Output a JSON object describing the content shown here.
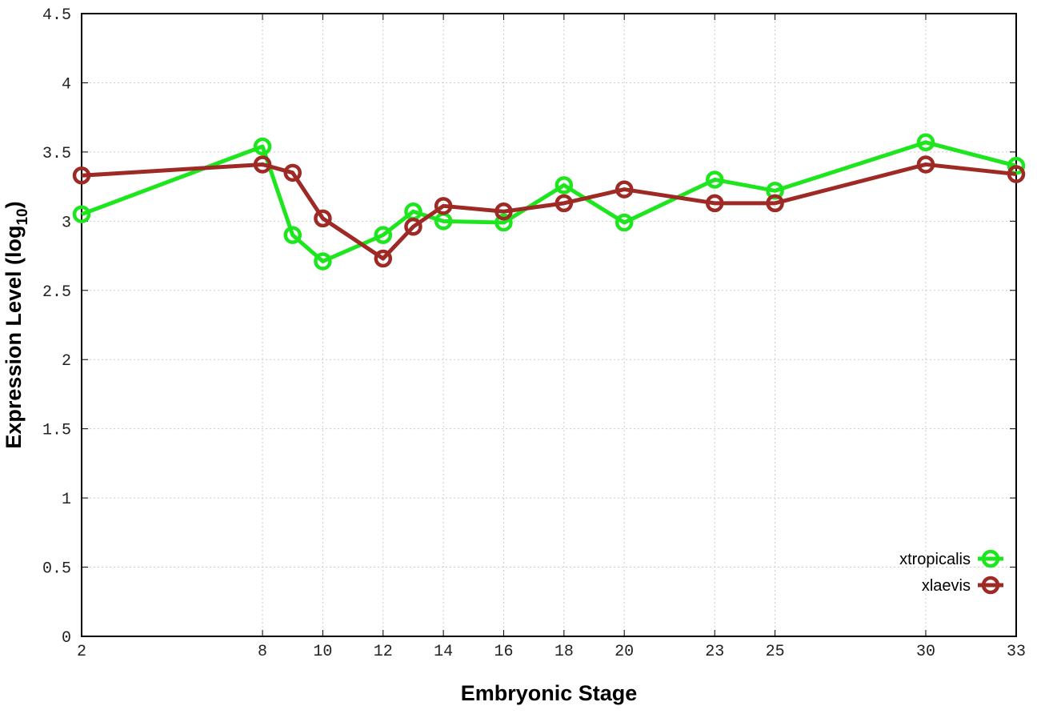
{
  "chart_data": {
    "type": "line",
    "title": "",
    "xlabel": "Embryonic Stage",
    "ylabel_main": "Expression Level (log",
    "ylabel_sub": "10",
    "ylabel_close": ")",
    "xlim": [
      2,
      33
    ],
    "ylim": [
      0,
      4.5
    ],
    "grid": true,
    "legend_position": "bottom-right",
    "x_ticks": [
      2,
      8,
      10,
      12,
      14,
      16,
      18,
      20,
      23,
      25,
      30,
      33
    ],
    "y_ticks": [
      "0",
      "0.5",
      "1",
      "1.5",
      "2",
      "2.5",
      "3",
      "3.5",
      "4",
      "4.5"
    ],
    "x": [
      2,
      8,
      9,
      10,
      12,
      13,
      14,
      16,
      18,
      20,
      23,
      25,
      30,
      33
    ],
    "series": [
      {
        "name": "xtropicalis",
        "color": "#1ee61e",
        "values": [
          3.05,
          3.54,
          2.9,
          2.71,
          2.9,
          3.07,
          3.0,
          2.99,
          3.26,
          2.99,
          3.3,
          3.22,
          3.57,
          3.4
        ]
      },
      {
        "name": "xlaevis",
        "color": "#9e2a26",
        "values": [
          3.33,
          3.41,
          3.35,
          3.02,
          2.73,
          2.96,
          3.11,
          3.07,
          3.13,
          3.23,
          3.13,
          3.13,
          3.41,
          3.34
        ]
      }
    ]
  }
}
